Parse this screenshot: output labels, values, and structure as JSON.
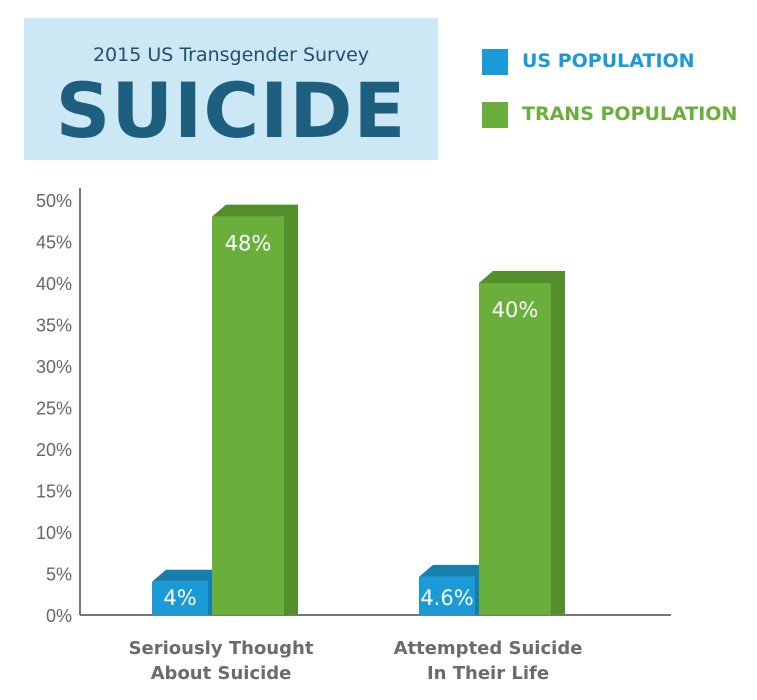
{
  "header": {
    "subtitle": "2015 US Transgender Survey",
    "title": "SUICIDE"
  },
  "colors": {
    "us": "#1a9bd7",
    "us_dark": "#167fae",
    "trans": "#6aae3c",
    "trans_dark": "#53902d",
    "title_box": "#cbe8f4"
  },
  "legend": [
    {
      "label": "US POPULATION",
      "color": "#1a9bd7"
    },
    {
      "label": "TRANS POPULATION",
      "color": "#6aae3c"
    }
  ],
  "chart_data": {
    "type": "bar",
    "title": "SUICIDE",
    "subtitle": "2015 US Transgender Survey",
    "categories": [
      [
        "Seriously Thought",
        "About Suicide"
      ],
      [
        "Attempted Suicide",
        "In Their Life"
      ]
    ],
    "series": [
      {
        "name": "US POPULATION",
        "values": [
          4,
          4.6
        ],
        "labels": [
          "4%",
          "4.6%"
        ]
      },
      {
        "name": "TRANS POPULATION",
        "values": [
          48,
          40
        ],
        "labels": [
          "48%",
          "40%"
        ]
      }
    ],
    "yticks": [
      "0%",
      "5%",
      "10%",
      "15%",
      "20%",
      "25%",
      "30%",
      "35%",
      "40%",
      "45%",
      "50%"
    ],
    "ylim": [
      0,
      50
    ],
    "grid": false,
    "legend_position": "top-right"
  }
}
